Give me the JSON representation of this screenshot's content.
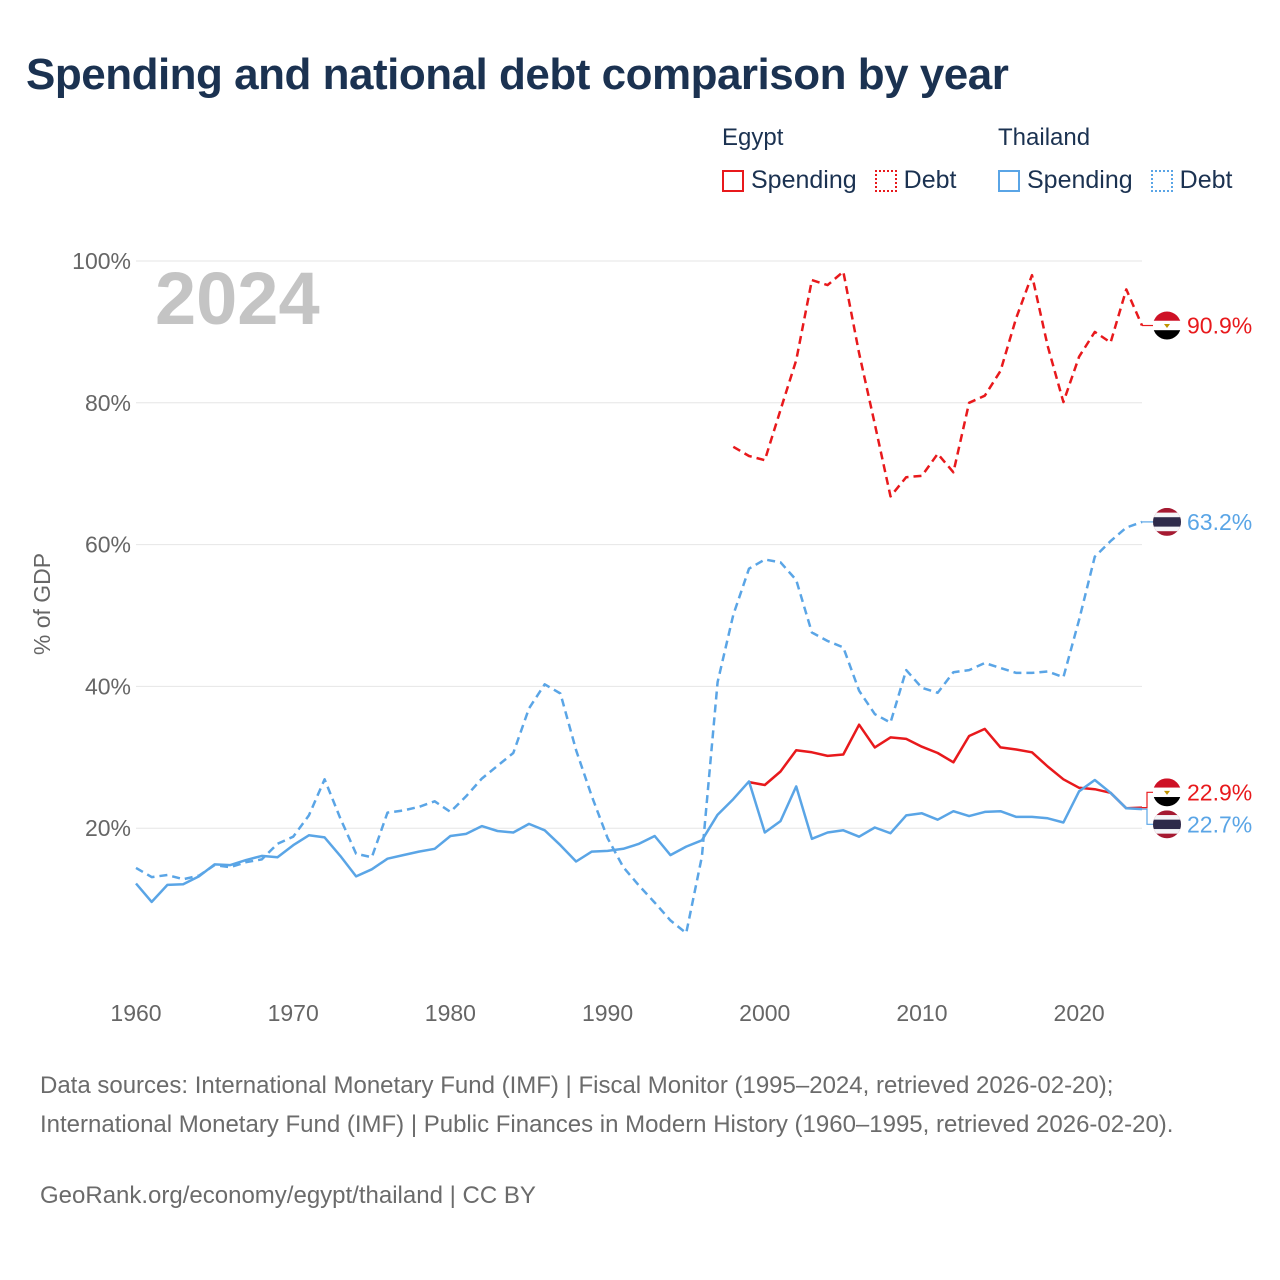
{
  "title": "Spending and national debt comparison by year",
  "legend": {
    "groups": [
      {
        "country": "Egypt",
        "color": "#e8191c",
        "items": [
          "Spending",
          "Debt"
        ]
      },
      {
        "country": "Thailand",
        "color": "#5aa5e6",
        "items": [
          "Spending",
          "Debt"
        ]
      }
    ]
  },
  "year_watermark": "2024",
  "source_note": "Data sources: International Monetary Fund (IMF) | Fiscal Monitor (1995–2024, retrieved 2026-02-20); International Monetary Fund (IMF) | Public Finances in Modern History (1960–1995, retrieved 2026-02-20).",
  "credit": "GeoRank.org/economy/egypt/thailand | CC BY",
  "chart_data": {
    "type": "line",
    "title": "Spending and national debt comparison by year",
    "ylabel": "% of GDP",
    "xlabel": "",
    "xlim": [
      1960,
      2024
    ],
    "ylim": [
      0,
      100
    ],
    "x_ticks": [
      1960,
      1970,
      1980,
      1990,
      2000,
      2010,
      2020
    ],
    "y_ticks": [
      20,
      40,
      60,
      80,
      100
    ],
    "y_tick_labels": [
      "20%",
      "40%",
      "60%",
      "80%",
      "100%"
    ],
    "grid": true,
    "legend_position": "top-right",
    "series": [
      {
        "name": "Egypt Spending",
        "color": "#e8191c",
        "dash": "solid",
        "x": [
          1999,
          2000,
          2001,
          2002,
          2003,
          2004,
          2005,
          2006,
          2007,
          2008,
          2009,
          2010,
          2011,
          2012,
          2013,
          2014,
          2015,
          2016,
          2017,
          2018,
          2019,
          2020,
          2021,
          2022,
          2023,
          2024
        ],
        "values": [
          26.5,
          26.1,
          28.0,
          31.0,
          30.7,
          30.2,
          30.4,
          34.6,
          31.4,
          32.8,
          32.6,
          31.5,
          30.6,
          29.3,
          33.0,
          34.0,
          31.4,
          31.1,
          30.7,
          28.7,
          26.9,
          25.7,
          25.5,
          25.0,
          22.8,
          22.9
        ],
        "end_label": "22.9%"
      },
      {
        "name": "Egypt Debt",
        "color": "#e8191c",
        "dash": "dashed",
        "x": [
          1998,
          1999,
          2000,
          2001,
          2002,
          2003,
          2004,
          2005,
          2006,
          2007,
          2008,
          2009,
          2010,
          2011,
          2012,
          2013,
          2014,
          2015,
          2016,
          2017,
          2018,
          2019,
          2020,
          2021,
          2022,
          2023,
          2024
        ],
        "values": [
          73.8,
          72.5,
          71.9,
          79.0,
          86.0,
          97.3,
          96.6,
          98.5,
          87.0,
          77.0,
          66.8,
          69.5,
          69.7,
          72.8,
          70.2,
          80.0,
          81.0,
          84.5,
          92.0,
          98.0,
          88.0,
          80.1,
          86.5,
          90.0,
          88.5,
          96.0,
          90.9
        ],
        "end_label": "90.9%"
      },
      {
        "name": "Thailand Spending",
        "color": "#5aa5e6",
        "dash": "solid",
        "x": [
          1960,
          1961,
          1962,
          1963,
          1964,
          1965,
          1966,
          1967,
          1968,
          1969,
          1970,
          1971,
          1972,
          1973,
          1974,
          1975,
          1976,
          1977,
          1978,
          1979,
          1980,
          1981,
          1982,
          1983,
          1984,
          1985,
          1986,
          1987,
          1988,
          1989,
          1990,
          1991,
          1992,
          1993,
          1994,
          1995,
          1996,
          1997,
          1998,
          1999,
          2000,
          2001,
          2002,
          2003,
          2004,
          2005,
          2006,
          2007,
          2008,
          2009,
          2010,
          2011,
          2012,
          2013,
          2014,
          2015,
          2016,
          2017,
          2018,
          2019,
          2020,
          2021,
          2022,
          2023,
          2024
        ],
        "values": [
          12.2,
          9.6,
          12.0,
          12.1,
          13.2,
          14.9,
          14.8,
          15.5,
          16.1,
          15.9,
          17.6,
          19.0,
          18.7,
          16.1,
          13.2,
          14.2,
          15.7,
          16.2,
          16.7,
          17.1,
          18.9,
          19.2,
          20.3,
          19.6,
          19.4,
          20.6,
          19.7,
          17.6,
          15.3,
          16.7,
          16.8,
          17.1,
          17.8,
          18.9,
          16.2,
          17.4,
          18.3,
          21.9,
          24.1,
          26.6,
          19.4,
          21.0,
          25.9,
          18.5,
          19.4,
          19.7,
          18.8,
          20.1,
          19.3,
          21.8,
          22.1,
          21.2,
          22.4,
          21.7,
          22.3,
          22.4,
          21.6,
          21.6,
          21.4,
          20.8,
          25.2,
          26.8,
          25.0,
          22.8,
          22.7
        ],
        "end_label": "22.7%"
      },
      {
        "name": "Thailand Debt",
        "color": "#5aa5e6",
        "dash": "dashed",
        "x": [
          1960,
          1961,
          1962,
          1963,
          1964,
          1965,
          1966,
          1967,
          1968,
          1969,
          1970,
          1971,
          1972,
          1973,
          1974,
          1975,
          1976,
          1977,
          1978,
          1979,
          1980,
          1981,
          1982,
          1983,
          1984,
          1985,
          1986,
          1987,
          1988,
          1989,
          1990,
          1991,
          1992,
          1993,
          1994,
          1995,
          1996,
          1997,
          1998,
          1999,
          2000,
          2001,
          2002,
          2003,
          2004,
          2005,
          2006,
          2007,
          2008,
          2009,
          2010,
          2011,
          2012,
          2013,
          2014,
          2015,
          2016,
          2017,
          2018,
          2019,
          2020,
          2021,
          2022,
          2023,
          2024
        ],
        "values": [
          14.4,
          13.1,
          13.4,
          12.8,
          13.3,
          14.8,
          14.5,
          15.2,
          15.6,
          17.8,
          18.8,
          21.8,
          26.9,
          21.4,
          16.4,
          15.9,
          22.2,
          22.5,
          23.0,
          23.8,
          22.3,
          24.5,
          27.0,
          28.8,
          30.6,
          36.9,
          40.3,
          39.0,
          31.0,
          24.5,
          18.6,
          14.5,
          11.9,
          9.5,
          7.0,
          5.2,
          16.0,
          40.6,
          50.1,
          56.6,
          57.9,
          57.5,
          55.0,
          47.6,
          46.4,
          45.5,
          39.4,
          36.1,
          34.9,
          42.3,
          39.8,
          39.1,
          42.0,
          42.3,
          43.3,
          42.6,
          41.9,
          41.9,
          42.1,
          41.3,
          49.4,
          58.3,
          60.5,
          62.4,
          63.2
        ],
        "end_label": "63.2%"
      }
    ]
  }
}
